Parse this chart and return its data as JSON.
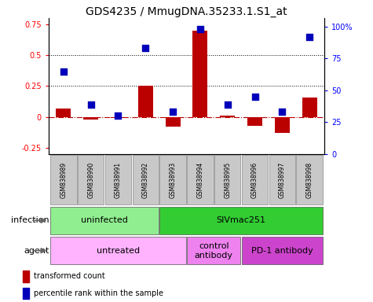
{
  "title": "GDS4235 / MmugDNA.35233.1.S1_at",
  "samples": [
    "GSM838989",
    "GSM838990",
    "GSM838991",
    "GSM838992",
    "GSM838993",
    "GSM838994",
    "GSM838995",
    "GSM838996",
    "GSM838997",
    "GSM838998"
  ],
  "transformed_count": [
    0.07,
    -0.02,
    -0.01,
    0.25,
    -0.08,
    0.7,
    0.01,
    -0.07,
    -0.13,
    0.16
  ],
  "percentile_rank_pct": [
    65,
    39,
    30,
    83,
    33,
    98,
    39,
    45,
    33,
    92
  ],
  "ylim_left": [
    -0.3,
    0.8
  ],
  "ylim_right": [
    0,
    106.67
  ],
  "yticks_left": [
    -0.25,
    0.0,
    0.25,
    0.5,
    0.75
  ],
  "yticks_right": [
    0,
    25,
    50,
    75,
    100
  ],
  "ytick_labels_right": [
    "0",
    "25",
    "50",
    "75",
    "100%"
  ],
  "hlines": [
    0.25,
    0.5
  ],
  "infection_groups": [
    {
      "label": "uninfected",
      "start": 0,
      "end": 4,
      "color": "#90EE90"
    },
    {
      "label": "SIVmac251",
      "start": 4,
      "end": 10,
      "color": "#33CC33"
    }
  ],
  "agent_groups": [
    {
      "label": "untreated",
      "start": 0,
      "end": 5,
      "color": "#FFB3FF"
    },
    {
      "label": "control\nantibody",
      "start": 5,
      "end": 7,
      "color": "#EE82EE"
    },
    {
      "label": "PD-1 antibody",
      "start": 7,
      "end": 10,
      "color": "#CC44CC"
    }
  ],
  "bar_color": "#BB0000",
  "dot_color": "#0000BB",
  "bar_width": 0.55,
  "dot_size": 35,
  "title_fontsize": 10,
  "tick_fontsize": 7,
  "label_fontsize": 8,
  "sample_fontsize": 5.5,
  "legend_fontsize": 7
}
